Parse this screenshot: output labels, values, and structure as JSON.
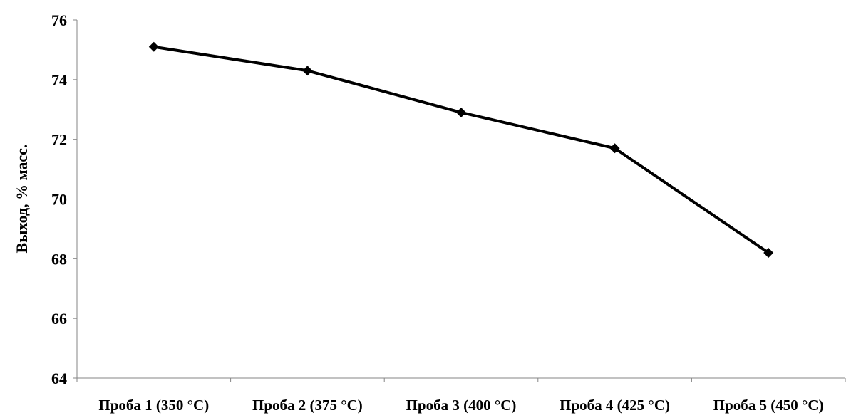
{
  "chart_data": {
    "type": "line",
    "title": "",
    "xlabel": "",
    "ylabel": "Выход, % масс.",
    "categories": [
      "Проба 1 (350 °С)",
      "Проба 2 (375 °С)",
      "Проба 3 (400 °С)",
      "Проба 4 (425 °С)",
      "Проба 5 (450 °С)"
    ],
    "series": [
      {
        "values": [
          75.1,
          74.3,
          72.9,
          71.7,
          68.2
        ]
      }
    ],
    "ylim": [
      64,
      76
    ],
    "yticks": [
      "64",
      "66",
      "68",
      "70",
      "72",
      "74",
      "76"
    ],
    "grid": false,
    "legend": "none",
    "line_color": "#000000",
    "marker": "diamond"
  }
}
